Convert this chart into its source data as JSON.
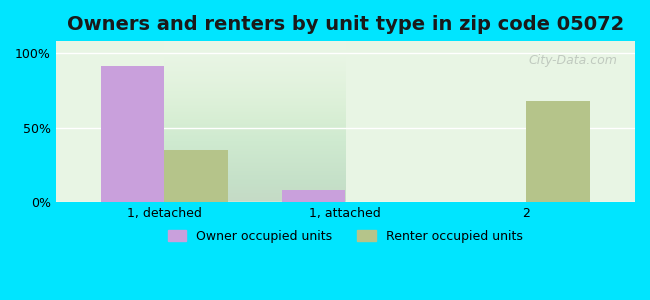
{
  "title": "Owners and renters by unit type in zip code 05072",
  "categories": [
    "1, detached",
    "1, attached",
    "2"
  ],
  "owner_values": [
    91,
    8,
    0
  ],
  "renter_values": [
    35,
    0,
    68
  ],
  "owner_color": "#c9a0dc",
  "renter_color": "#b5c48a",
  "background_color": "#e8f5e4",
  "yticks": [
    0,
    50,
    100
  ],
  "ytick_labels": [
    "0%",
    "50%",
    "100%"
  ],
  "ylim": [
    0,
    108
  ],
  "bar_width": 0.35,
  "legend_owner": "Owner occupied units",
  "legend_renter": "Renter occupied units",
  "title_fontsize": 14,
  "watermark": "City-Data.com"
}
